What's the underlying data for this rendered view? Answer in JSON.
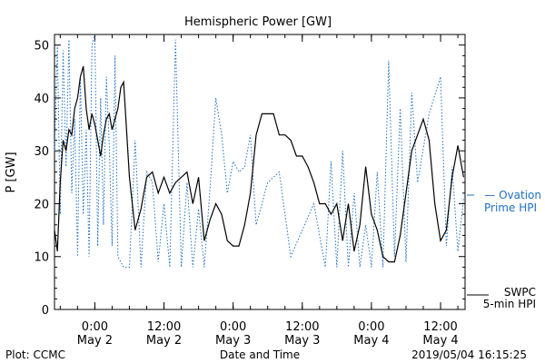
{
  "chart_data": {
    "type": "line",
    "title": "Hemispheric Power [GW]",
    "ylabel": "P [GW]",
    "xlabel": "Date and Time",
    "ylim": [
      0,
      52
    ],
    "yticks": [
      0,
      10,
      20,
      30,
      40,
      50
    ],
    "xlim": [
      "2019-05-01 17:00",
      "2019-05-04 16:15"
    ],
    "xticks": [
      {
        "time": "2019-05-02 00:00",
        "line1": "0:00",
        "line2": "May 2"
      },
      {
        "time": "2019-05-02 12:00",
        "line1": "12:00",
        "line2": "May 2"
      },
      {
        "time": "2019-05-03 00:00",
        "line1": "0:00",
        "line2": "May 3"
      },
      {
        "time": "2019-05-03 12:00",
        "line1": "12:00",
        "line2": "May 3"
      },
      {
        "time": "2019-05-04 00:00",
        "line1": "0:00",
        "line2": "May 4"
      },
      {
        "time": "2019-05-04 12:00",
        "line1": "12:00",
        "line2": "May 4"
      }
    ],
    "grid": false,
    "series": [
      {
        "name": "SWPC 5-min HPI",
        "color": "#000000",
        "style": "solid",
        "x": [
          "2019-05-01 17:00",
          "2019-05-01 17:30",
          "2019-05-01 18:00",
          "2019-05-01 18:30",
          "2019-05-01 19:00",
          "2019-05-01 19:30",
          "2019-05-01 20:00",
          "2019-05-01 20:30",
          "2019-05-01 21:00",
          "2019-05-01 21:30",
          "2019-05-01 22:00",
          "2019-05-01 22:30",
          "2019-05-01 23:00",
          "2019-05-01 23:30",
          "2019-05-02 00:00",
          "2019-05-02 00:30",
          "2019-05-02 01:00",
          "2019-05-02 01:30",
          "2019-05-02 02:00",
          "2019-05-02 02:30",
          "2019-05-02 03:00",
          "2019-05-02 03:30",
          "2019-05-02 04:00",
          "2019-05-02 04:30",
          "2019-05-02 05:00",
          "2019-05-02 06:00",
          "2019-05-02 07:00",
          "2019-05-02 08:00",
          "2019-05-02 09:00",
          "2019-05-02 10:00",
          "2019-05-02 11:00",
          "2019-05-02 12:00",
          "2019-05-02 13:00",
          "2019-05-02 14:00",
          "2019-05-02 15:00",
          "2019-05-02 16:00",
          "2019-05-02 17:00",
          "2019-05-02 18:00",
          "2019-05-02 19:00",
          "2019-05-02 20:00",
          "2019-05-02 21:00",
          "2019-05-02 22:00",
          "2019-05-02 23:00",
          "2019-05-03 00:00",
          "2019-05-03 01:00",
          "2019-05-03 02:00",
          "2019-05-03 03:00",
          "2019-05-03 04:00",
          "2019-05-03 05:00",
          "2019-05-03 06:00",
          "2019-05-03 07:00",
          "2019-05-03 08:00",
          "2019-05-03 09:00",
          "2019-05-03 10:00",
          "2019-05-03 11:00",
          "2019-05-03 12:00",
          "2019-05-03 13:00",
          "2019-05-03 14:00",
          "2019-05-03 15:00",
          "2019-05-03 16:00",
          "2019-05-03 17:00",
          "2019-05-03 18:00",
          "2019-05-03 19:00",
          "2019-05-03 20:00",
          "2019-05-03 21:00",
          "2019-05-03 22:00",
          "2019-05-03 23:00",
          "2019-05-04 00:00",
          "2019-05-04 01:00",
          "2019-05-04 02:00",
          "2019-05-04 03:00",
          "2019-05-04 04:00",
          "2019-05-04 05:00",
          "2019-05-04 06:00",
          "2019-05-04 07:00",
          "2019-05-04 08:00",
          "2019-05-04 09:00",
          "2019-05-04 10:00",
          "2019-05-04 11:00",
          "2019-05-04 12:00",
          "2019-05-04 13:00",
          "2019-05-04 14:00",
          "2019-05-04 15:00",
          "2019-05-04 16:00"
        ],
        "y": [
          15,
          11,
          24,
          32,
          30,
          34,
          33,
          38,
          40,
          44,
          46,
          38,
          34,
          37,
          35,
          32,
          29,
          33,
          36,
          37,
          34,
          36,
          38,
          42,
          43,
          25,
          15,
          19,
          25,
          26,
          22,
          25,
          22,
          24,
          25,
          26,
          20,
          25,
          13,
          17,
          20,
          18,
          13,
          12,
          12,
          16,
          22,
          33,
          37,
          37,
          37,
          33,
          33,
          32,
          29,
          29,
          27,
          24,
          20,
          20,
          18,
          20,
          13,
          20,
          11,
          16,
          27,
          18,
          15,
          10,
          9,
          9,
          14,
          22,
          30,
          33,
          36,
          32,
          20,
          13,
          15,
          25,
          31,
          25
        ]
      },
      {
        "name": "Ovation Prime HPI",
        "color": "#1f6fbf",
        "style": "dotted",
        "x": [
          "2019-05-01 17:00",
          "2019-05-01 17:30",
          "2019-05-01 18:00",
          "2019-05-01 18:30",
          "2019-05-01 19:00",
          "2019-05-01 19:30",
          "2019-05-01 20:00",
          "2019-05-01 20:30",
          "2019-05-01 21:00",
          "2019-05-01 21:30",
          "2019-05-01 22:00",
          "2019-05-01 22:30",
          "2019-05-01 23:00",
          "2019-05-01 23:30",
          "2019-05-02 00:00",
          "2019-05-02 00:30",
          "2019-05-02 01:00",
          "2019-05-02 01:30",
          "2019-05-02 02:00",
          "2019-05-02 02:30",
          "2019-05-02 03:00",
          "2019-05-02 03:30",
          "2019-05-02 04:00",
          "2019-05-02 05:00",
          "2019-05-02 06:00",
          "2019-05-02 07:00",
          "2019-05-02 08:00",
          "2019-05-02 09:00",
          "2019-05-02 10:00",
          "2019-05-02 11:00",
          "2019-05-02 12:00",
          "2019-05-02 13:00",
          "2019-05-02 14:00",
          "2019-05-02 15:00",
          "2019-05-02 16:00",
          "2019-05-02 17:00",
          "2019-05-02 18:00",
          "2019-05-02 19:00",
          "2019-05-02 20:00",
          "2019-05-02 21:00",
          "2019-05-02 22:00",
          "2019-05-02 23:00",
          "2019-05-03 00:00",
          "2019-05-03 01:00",
          "2019-05-03 02:00",
          "2019-05-03 03:00",
          "2019-05-03 04:00",
          "2019-05-03 06:00",
          "2019-05-03 08:00",
          "2019-05-03 10:00",
          "2019-05-03 12:00",
          "2019-05-03 14:00",
          "2019-05-03 16:00",
          "2019-05-03 17:00",
          "2019-05-03 18:00",
          "2019-05-03 19:00",
          "2019-05-03 20:00",
          "2019-05-03 21:00",
          "2019-05-03 22:00",
          "2019-05-03 23:00",
          "2019-05-04 00:00",
          "2019-05-04 01:00",
          "2019-05-04 02:00",
          "2019-05-04 03:00",
          "2019-05-04 04:00",
          "2019-05-04 05:00",
          "2019-05-04 06:00",
          "2019-05-04 07:00",
          "2019-05-04 08:00",
          "2019-05-04 10:00",
          "2019-05-04 12:00",
          "2019-05-04 13:00",
          "2019-05-04 14:00",
          "2019-05-04 15:00",
          "2019-05-04 16:00"
        ],
        "y": [
          30,
          50,
          18,
          49,
          27,
          51,
          22,
          36,
          10,
          44,
          18,
          34,
          10,
          50,
          52,
          12,
          40,
          16,
          44,
          31,
          12,
          48,
          10,
          8,
          8,
          32,
          8,
          26,
          24,
          9,
          20,
          8,
          51,
          8,
          24,
          8,
          19,
          8,
          23,
          40,
          33,
          22,
          28,
          26,
          27,
          33,
          16,
          24,
          26,
          10,
          15,
          20,
          8,
          28,
          8,
          30,
          8,
          22,
          8,
          16,
          8,
          26,
          8,
          47,
          10,
          38,
          9,
          41,
          24,
          37,
          44,
          12,
          27,
          11,
          21
        ]
      }
    ],
    "legend": [
      {
        "label": "SWPC",
        "label2": "5-min HPI",
        "color": "#000000"
      },
      {
        "label": "— Ovation",
        "label2": "Prime HPI",
        "color": "#1f6fbf"
      }
    ],
    "footer_left": "Plot: CCMC",
    "footer_right": "2019/05/04 16:15:25"
  }
}
